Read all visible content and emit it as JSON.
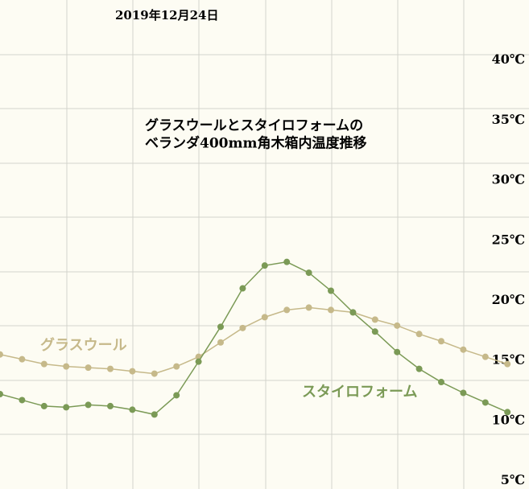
{
  "chart_data": {
    "type": "line",
    "date": "2019年12月24日",
    "title": [
      "グラスウールとスタイロフォームの",
      "ベランダ400mm角木箱内温度推移"
    ],
    "series": [
      {
        "name": "グラスウール",
        "color": "#c6b98a",
        "values": [
          15.5,
          15.1,
          14.7,
          14.5,
          14.4,
          14.3,
          14.1,
          13.9,
          14.5,
          15.3,
          16.5,
          17.7,
          18.6,
          19.2,
          19.4,
          19.2,
          19.0,
          18.4,
          17.9,
          17.2,
          16.6,
          15.9,
          15.3,
          14.7
        ]
      },
      {
        "name": "スタイロフォーム",
        "color": "#7b9a56",
        "values": [
          12.2,
          11.7,
          11.2,
          11.1,
          11.3,
          11.2,
          10.9,
          10.5,
          12.1,
          14.9,
          17.8,
          21.0,
          22.9,
          23.2,
          22.3,
          20.8,
          19.0,
          17.4,
          15.7,
          14.3,
          13.2,
          12.3,
          11.5,
          10.7
        ]
      }
    ],
    "ylim": [
      4.3,
      45
    ],
    "yticks": [
      {
        "value": 5,
        "label": "5℃"
      },
      {
        "value": 10,
        "label": "10℃"
      },
      {
        "value": 15,
        "label": "15℃"
      },
      {
        "value": 20,
        "label": "20℃"
      },
      {
        "value": 25,
        "label": "25℃"
      },
      {
        "value": 30,
        "label": "30℃"
      },
      {
        "value": 35,
        "label": "35℃"
      },
      {
        "value": 40,
        "label": "40℃"
      }
    ]
  }
}
